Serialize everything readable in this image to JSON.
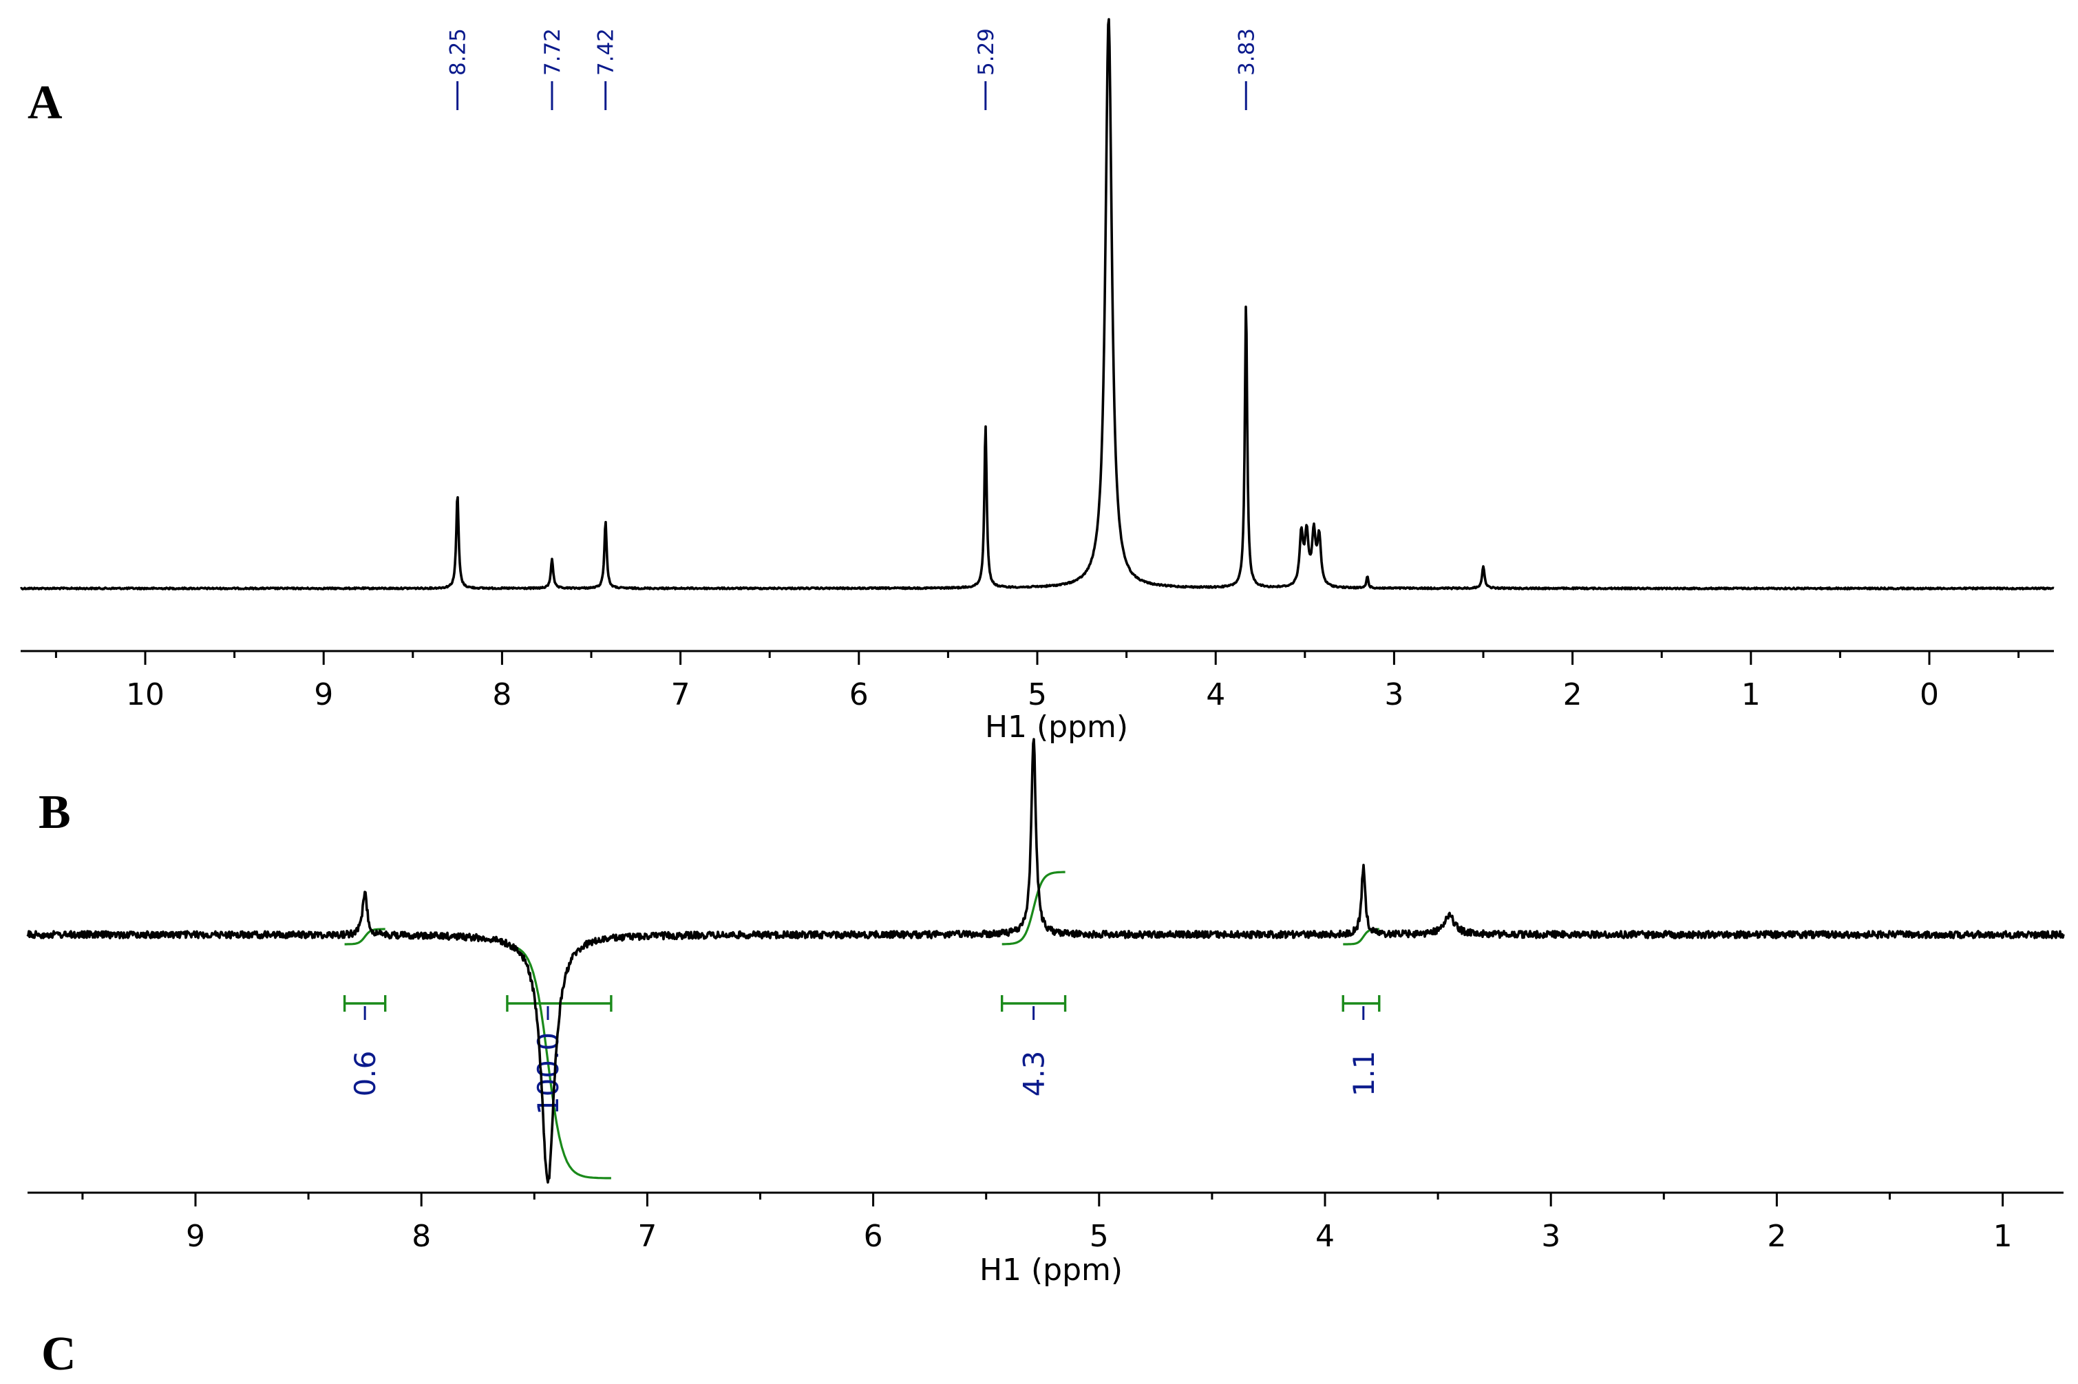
{
  "panel_labels": [
    "A",
    "B",
    "C"
  ],
  "chart_data": [
    {
      "type": "line",
      "panel": "A",
      "xlabel": "H1 (ppm)",
      "xlim": [
        10.7,
        -0.7
      ],
      "x_reversed": true,
      "x_ticks": [
        10,
        9,
        8,
        7,
        6,
        5,
        4,
        3,
        2,
        1,
        0
      ],
      "peak_labels": [
        "8.25",
        "7.72",
        "7.42",
        "5.29",
        "3.83"
      ],
      "peaks": [
        {
          "ppm": 8.25,
          "height": 0.165,
          "width": 0.008
        },
        {
          "ppm": 7.72,
          "height": 0.052,
          "width": 0.008
        },
        {
          "ppm": 7.42,
          "height": 0.117,
          "width": 0.008
        },
        {
          "ppm": 5.29,
          "height": 0.285,
          "width": 0.008
        },
        {
          "ppm": 4.6,
          "height": 1.0,
          "width": 0.022
        },
        {
          "ppm": 3.83,
          "height": 0.5,
          "width": 0.008
        },
        {
          "ppm": 3.52,
          "height": 0.09,
          "width": 0.012
        },
        {
          "ppm": 3.49,
          "height": 0.09,
          "width": 0.012
        },
        {
          "ppm": 3.45,
          "height": 0.09,
          "width": 0.012
        },
        {
          "ppm": 3.42,
          "height": 0.085,
          "width": 0.012
        },
        {
          "ppm": 3.15,
          "height": 0.022,
          "width": 0.006
        },
        {
          "ppm": 2.5,
          "height": 0.037,
          "width": 0.009
        }
      ]
    },
    {
      "type": "line",
      "panel": "B",
      "xlabel": "H1 (ppm)",
      "xlim": [
        9.76,
        0.76
      ],
      "x_reversed": true,
      "x_ticks": [
        9,
        8,
        7,
        6,
        5,
        4,
        3,
        2,
        1
      ],
      "peaks": [
        {
          "ppm": 8.25,
          "height": 0.14,
          "width": 0.012
        },
        {
          "ppm": 7.44,
          "height": -1.0,
          "width": 0.035
        },
        {
          "ppm": 5.29,
          "height": 0.64,
          "width": 0.012
        },
        {
          "ppm": 3.83,
          "height": 0.22,
          "width": 0.01
        },
        {
          "ppm": 3.45,
          "height": 0.06,
          "width": 0.03
        }
      ],
      "integrals": [
        {
          "center": 8.25,
          "from": 8.34,
          "to": 8.16,
          "value": "0.6"
        },
        {
          "center": 7.44,
          "from": 7.62,
          "to": 7.16,
          "value": "100.0"
        },
        {
          "center": 5.29,
          "from": 5.43,
          "to": 5.15,
          "value": "4.3"
        },
        {
          "center": 3.83,
          "from": 3.92,
          "to": 3.76,
          "value": "1.1"
        }
      ]
    }
  ]
}
